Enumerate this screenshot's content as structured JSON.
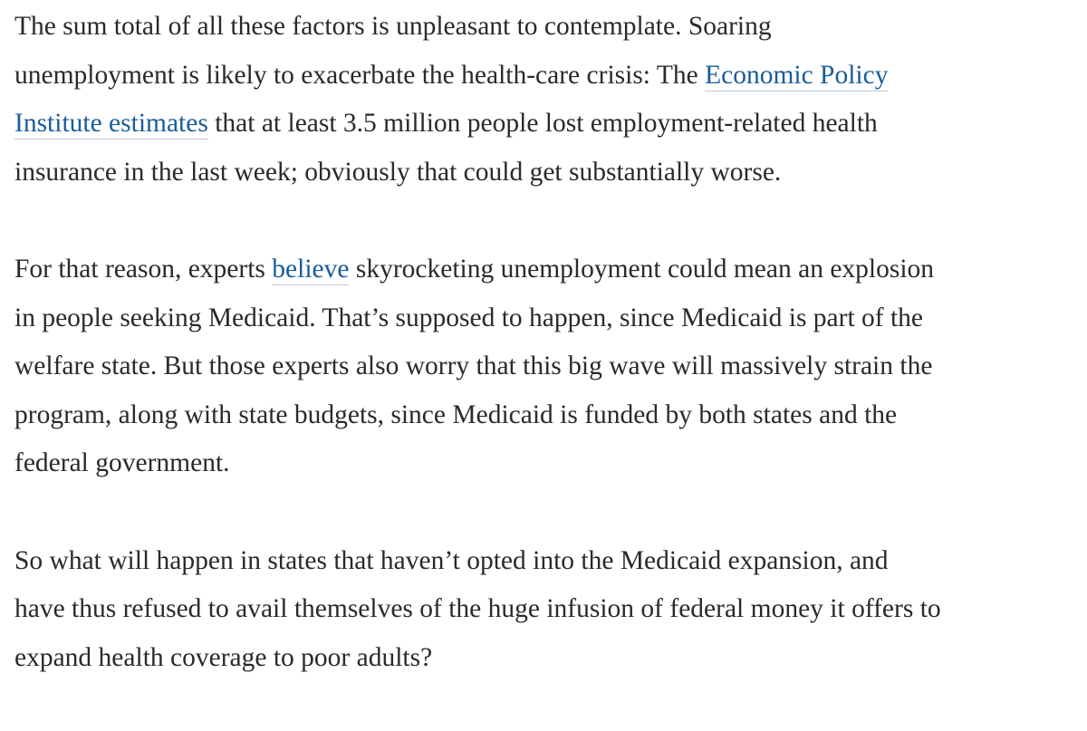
{
  "article": {
    "paragraphs": [
      {
        "lines": [
          [
            {
              "text": "The sum total of all these factors is unpleasant to contemplate. Soaring"
            }
          ],
          [
            {
              "text": "unemployment is likely to exacerbate the health-care crisis: The "
            },
            {
              "text": "Economic Policy",
              "link": true
            }
          ],
          [
            {
              "text": "Institute estimates",
              "link": true
            },
            {
              "text": " that at least 3.5 million people lost employment-related health"
            }
          ],
          [
            {
              "text": "insurance in the last week; obviously that could get substantially worse."
            }
          ]
        ]
      },
      {
        "lines": [
          [
            {
              "text": "For that reason, experts "
            },
            {
              "text": "believe",
              "link": true
            },
            {
              "text": " skyrocketing unemployment could mean an explosion"
            }
          ],
          [
            {
              "text": "in people seeking Medicaid. That’s supposed to happen, since Medicaid is part of the"
            }
          ],
          [
            {
              "text": "welfare state. But those experts also worry that this big wave will massively strain the"
            }
          ],
          [
            {
              "text": "program, along with state budgets, since Medicaid is funded by both states and the"
            }
          ],
          [
            {
              "text": "federal government."
            }
          ]
        ]
      },
      {
        "lines": [
          [
            {
              "text": "So what will happen in states that haven’t opted into the Medicaid expansion, and"
            }
          ],
          [
            {
              "text": "have thus refused to avail themselves of the huge infusion of federal money it offers to"
            }
          ],
          [
            {
              "text": "expand health coverage to poor adults?"
            }
          ]
        ]
      }
    ]
  }
}
